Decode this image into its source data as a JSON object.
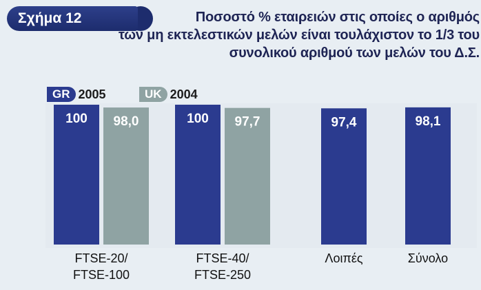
{
  "figure": {
    "badge": "Σχήμα 12",
    "title_lines": [
      "Ποσοστό % εταιρειών στις οποίες ο αριθμός",
      "των μη εκτελεστικών μελών είναι τουλάχιστον το 1/3 του",
      "συνολικού αριθμού των μελών του Δ.Σ."
    ]
  },
  "legend": [
    {
      "tag": "GR",
      "year": "2005",
      "color": "#2b3b8f"
    },
    {
      "tag": "UK",
      "year": "2004",
      "color": "#8fa3a3"
    }
  ],
  "chart_data": {
    "type": "bar",
    "title": "Ποσοστό % εταιρειών στις οποίες ο αριθμός των μη εκτελεστικών μελών είναι τουλάχιστον το 1/3 του συνολικού αριθμού των μελών του Δ.Σ.",
    "categories": [
      {
        "label_lines": [
          "FTSE-20/",
          "FTSE-100"
        ]
      },
      {
        "label_lines": [
          "FTSE-40/",
          "FTSE-250"
        ]
      },
      {
        "label_lines": [
          "Λοιπές"
        ]
      },
      {
        "label_lines": [
          "Σύνολο"
        ]
      }
    ],
    "series": [
      {
        "name": "GR 2005",
        "color": "#2b3b8f",
        "values": [
          100,
          100,
          97.4,
          98.1
        ],
        "labels": [
          "100",
          "100",
          "97,4",
          "98,1"
        ]
      },
      {
        "name": "UK 2004",
        "color": "#8fa3a3",
        "values": [
          98.0,
          97.7,
          null,
          null
        ],
        "labels": [
          "98,0",
          "97,7",
          "",
          ""
        ]
      }
    ],
    "ylim": [
      0,
      100
    ],
    "grid": false,
    "legend_position": "top-left"
  }
}
